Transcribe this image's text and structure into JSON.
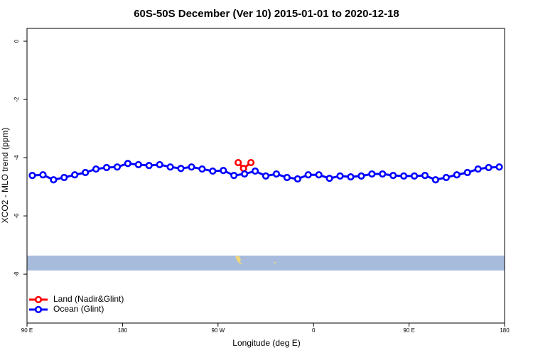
{
  "chart_data": {
    "type": "line",
    "title": "60S-50S December (Ver 10)   2015-01-01 to 2020-12-18",
    "x_label": "Longitude (deg E)",
    "y_label": "XCO2 - MLO trend (ppm)",
    "xlim": [
      90,
      540
    ],
    "xticks": [
      {
        "value": 90,
        "label": "90 E"
      },
      {
        "value": 180,
        "label": "180"
      },
      {
        "value": 270,
        "label": "90 W"
      },
      {
        "value": 360,
        "label": "0"
      },
      {
        "value": 450,
        "label": "90 E"
      },
      {
        "value": 540,
        "label": "180"
      }
    ],
    "ylim": [
      -9.68,
      0.44
    ],
    "yticks": [
      0,
      -2,
      -4,
      -6,
      -8
    ],
    "legend": "bottom-left",
    "series": [
      {
        "name": "Land (Nadir&Glint)",
        "color": "#ff0000",
        "x": [
          289,
          294,
          301
        ],
        "values": [
          -4.17,
          -4.37,
          -4.17
        ]
      },
      {
        "name": "Ocean (Glint)",
        "color": "#0000ff",
        "x": [
          95,
          105,
          115,
          125,
          135,
          145,
          155,
          165,
          175,
          185,
          195,
          205,
          215,
          225,
          235,
          245,
          255,
          265,
          275,
          285,
          295,
          305,
          315,
          325,
          335,
          345,
          355,
          365,
          375,
          385,
          395,
          405,
          415,
          425,
          435,
          445,
          455,
          465,
          475,
          485,
          495,
          505,
          515,
          525,
          535
        ],
        "values": [
          -4.61,
          -4.59,
          -4.76,
          -4.68,
          -4.59,
          -4.51,
          -4.39,
          -4.34,
          -4.32,
          -4.2,
          -4.24,
          -4.27,
          -4.24,
          -4.32,
          -4.37,
          -4.32,
          -4.39,
          -4.46,
          -4.44,
          -4.61,
          -4.56,
          -4.46,
          -4.63,
          -4.56,
          -4.68,
          -4.73,
          -4.59,
          -4.59,
          -4.71,
          -4.63,
          -4.66,
          -4.63,
          -4.56,
          -4.56,
          -4.61,
          -4.63,
          -4.63,
          -4.61,
          -4.76,
          -4.68,
          -4.59,
          -4.51,
          -4.39,
          -4.34,
          -4.32
        ]
      }
    ]
  }
}
